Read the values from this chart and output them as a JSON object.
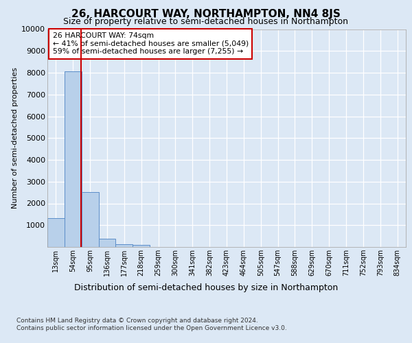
{
  "title": "26, HARCOURT WAY, NORTHAMPTON, NN4 8JS",
  "subtitle": "Size of property relative to semi-detached houses in Northampton",
  "xlabel_bottom": "Distribution of semi-detached houses by size in Northampton",
  "ylabel": "Number of semi-detached properties",
  "categories": [
    "13sqm",
    "54sqm",
    "95sqm",
    "136sqm",
    "177sqm",
    "218sqm",
    "259sqm",
    "300sqm",
    "341sqm",
    "382sqm",
    "423sqm",
    "464sqm",
    "505sqm",
    "547sqm",
    "588sqm",
    "629sqm",
    "670sqm",
    "711sqm",
    "752sqm",
    "793sqm",
    "834sqm"
  ],
  "bar_values": [
    1320,
    8050,
    2520,
    380,
    140,
    85,
    0,
    0,
    0,
    0,
    0,
    0,
    0,
    0,
    0,
    0,
    0,
    0,
    0,
    0,
    0
  ],
  "bar_color": "#b8d0ea",
  "bar_edge_color": "#5b8dc8",
  "vline_color": "#cc0000",
  "annotation_text": "26 HARCOURT WAY: 74sqm\n← 41% of semi-detached houses are smaller (5,049)\n59% of semi-detached houses are larger (7,255) →",
  "annotation_box_color": "#ffffff",
  "annotation_box_edge": "#cc0000",
  "ylim": [
    0,
    10000
  ],
  "yticks": [
    0,
    1000,
    2000,
    3000,
    4000,
    5000,
    6000,
    7000,
    8000,
    9000,
    10000
  ],
  "footer_line1": "Contains HM Land Registry data © Crown copyright and database right 2024.",
  "footer_line2": "Contains public sector information licensed under the Open Government Licence v3.0.",
  "bg_color": "#dce8f5",
  "plot_bg_color": "#dce8f5",
  "grid_color": "#ffffff",
  "title_fontsize": 11,
  "subtitle_fontsize": 9
}
